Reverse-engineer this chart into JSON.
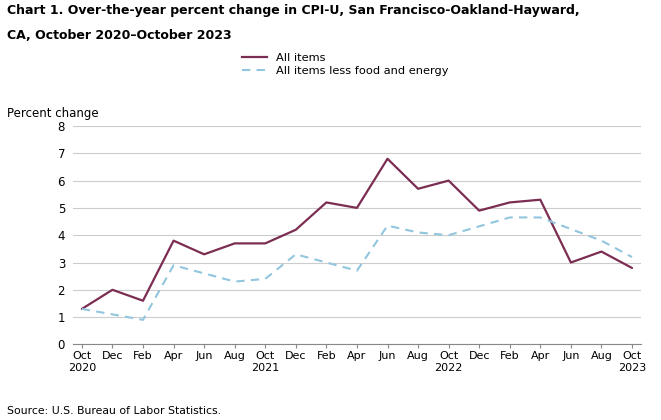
{
  "title_line1": "Chart 1. Over-the-year percent change in CPI-U, San Francisco-Oakland-Hayward,",
  "title_line2": "CA, October 2020–October 2023",
  "ylabel": "Percent change",
  "source": "Source: U.S. Bureau of Labor Statistics.",
  "ylim": [
    0.0,
    8.0
  ],
  "yticks": [
    0.0,
    1.0,
    2.0,
    3.0,
    4.0,
    5.0,
    6.0,
    7.0,
    8.0
  ],
  "legend_all_items": "All items",
  "legend_core": "All items less food and energy",
  "all_items_color": "#7B2D52",
  "core_color": "#92C5DE",
  "x_labels_top": [
    "Oct",
    "Dec",
    "Feb",
    "Apr",
    "Jun",
    "Aug",
    "Oct",
    "Dec",
    "Feb",
    "Apr",
    "Jun",
    "Aug",
    "Oct",
    "Dec",
    "Feb",
    "Apr",
    "Jun",
    "Aug",
    "Oct"
  ],
  "x_labels_bottom": [
    "2020",
    "",
    "",
    "",
    "",
    "",
    "2021",
    "",
    "",
    "",
    "",
    "",
    "2022",
    "",
    "",
    "",
    "",
    "",
    "2023"
  ],
  "all_items": [
    1.3,
    2.0,
    1.6,
    3.8,
    3.3,
    3.7,
    3.7,
    4.2,
    5.2,
    5.0,
    6.8,
    5.7,
    6.0,
    4.9,
    5.2,
    5.3,
    3.0,
    3.4,
    2.8
  ],
  "core": [
    1.3,
    null,
    0.9,
    2.9,
    null,
    2.3,
    2.4,
    3.3,
    3.0,
    2.7,
    4.35,
    4.1,
    4.0,
    null,
    4.65,
    4.65,
    null,
    3.8,
    3.2
  ]
}
